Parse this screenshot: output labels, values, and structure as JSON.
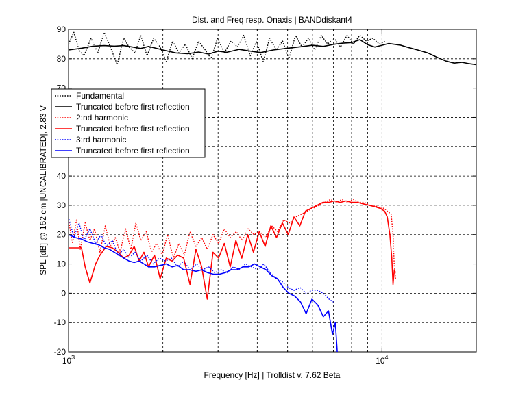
{
  "chart_data": {
    "type": "line",
    "title": "Dist. and Freq resp. Onaxis | BANDdiskant4",
    "xlabel": "Frequency [Hz] | Trolldist v. 7.62 Beta",
    "ylabel": "SPL [dB] @ 162 cm |UNCALIBRATED|, 2.83 V",
    "xscale": "log",
    "xlim": [
      1000,
      20000
    ],
    "ylim": [
      -20,
      90
    ],
    "grid": true,
    "legend_position": "upper-left",
    "x_ticks": [
      {
        "value": 1000,
        "base": "10",
        "exp": "3"
      },
      {
        "value": 10000,
        "base": "10",
        "exp": "4"
      }
    ],
    "y_ticks": [
      -20,
      -10,
      0,
      10,
      20,
      30,
      40,
      50,
      60,
      70,
      80,
      90
    ],
    "series": [
      {
        "name": "Fundamental",
        "color": "#000000",
        "style": "dotted",
        "x": [
          1000,
          1040,
          1080,
          1120,
          1180,
          1240,
          1300,
          1360,
          1430,
          1500,
          1560,
          1630,
          1700,
          1780,
          1870,
          1960,
          2050,
          2150,
          2250,
          2360,
          2480,
          2600,
          2730,
          2850,
          2990,
          3140,
          3300,
          3460,
          3620,
          3800,
          3980,
          4180,
          4380,
          4600,
          4820,
          5050,
          5300,
          5560,
          5830,
          6100,
          6400,
          6710,
          7040,
          7380,
          7740,
          8110,
          8500,
          8920,
          9350,
          9800,
          10300
        ],
        "y": [
          85,
          89,
          83,
          81,
          87,
          82,
          89,
          84,
          78,
          87,
          84,
          82,
          88,
          81,
          87,
          84,
          79,
          86,
          82,
          85,
          80,
          86,
          83,
          80,
          87,
          82,
          86,
          84,
          88,
          81,
          86,
          79,
          87,
          83,
          86,
          80,
          88,
          84,
          87,
          83,
          88,
          85,
          87,
          84,
          88,
          85,
          88,
          86,
          87,
          85,
          86
        ]
      },
      {
        "name": "Truncated before first reflection",
        "color": "#000000",
        "style": "solid",
        "x": [
          1000,
          1100,
          1200,
          1300,
          1400,
          1500,
          1600,
          1700,
          1800,
          1900,
          2000,
          2200,
          2400,
          2600,
          2800,
          3000,
          3200,
          3500,
          3800,
          4100,
          4500,
          5000,
          5500,
          6000,
          6500,
          7000,
          7500,
          8000,
          8500,
          9000,
          9500,
          10000,
          10500,
          11000,
          11500,
          12000,
          13000,
          14000,
          15000,
          16000,
          17000,
          18000,
          19000,
          20000
        ],
        "y": [
          83,
          83.6,
          84.3,
          84.5,
          84.3,
          84.5,
          84,
          83.5,
          84.2,
          83.6,
          83,
          82,
          81.7,
          82.3,
          81.6,
          82.6,
          82.2,
          83.2,
          82.6,
          82.1,
          83,
          83.6,
          84.1,
          84.6,
          84.2,
          84.9,
          85.3,
          85.5,
          86.5,
          84.8,
          84,
          84.6,
          85.2,
          84.9,
          84.6,
          84,
          83,
          82,
          80.5,
          79.2,
          78.5,
          78.8,
          78.3,
          78
        ]
      },
      {
        "name": "2:nd harmonic",
        "color": "#ff0000",
        "style": "dotted",
        "x": [
          1000,
          1030,
          1060,
          1090,
          1130,
          1170,
          1210,
          1260,
          1310,
          1360,
          1410,
          1460,
          1520,
          1580,
          1640,
          1700,
          1770,
          1840,
          1910,
          1990,
          2070,
          2160,
          2250,
          2340,
          2440,
          2550,
          2660,
          2770,
          2890,
          3010,
          3140,
          3280,
          3430,
          3580,
          3740,
          3900,
          4080,
          4260,
          4450,
          4650,
          4860,
          5080,
          5300,
          5540,
          5780,
          6030,
          6300,
          6570,
          6850,
          7150,
          7450,
          7770,
          8100,
          8450,
          8800,
          9150,
          9500,
          9850,
          10150,
          10400,
          10700,
          10850,
          10950,
          11050
        ],
        "y": [
          25,
          17,
          25,
          15,
          24,
          18,
          22,
          14,
          23,
          16,
          19,
          14,
          22,
          15,
          24,
          18,
          21,
          14,
          17,
          13,
          20,
          12,
          17,
          13,
          21,
          16,
          19,
          15,
          20,
          17,
          22,
          19,
          21,
          18,
          22,
          20,
          21,
          19,
          23,
          21,
          25,
          24,
          26,
          27,
          28,
          29,
          30,
          31,
          32,
          31,
          32,
          31,
          32,
          31,
          31,
          30,
          30,
          29,
          29,
          28,
          27,
          20,
          9,
          5
        ]
      },
      {
        "name": "Truncated before first reflection",
        "color": "#ff0000",
        "style": "solid",
        "x": [
          1000,
          1050,
          1100,
          1130,
          1170,
          1220,
          1260,
          1320,
          1380,
          1440,
          1500,
          1560,
          1620,
          1680,
          1740,
          1800,
          1880,
          1960,
          2050,
          2140,
          2230,
          2330,
          2440,
          2550,
          2660,
          2770,
          2890,
          3010,
          3140,
          3280,
          3420,
          3570,
          3730,
          3890,
          4060,
          4240,
          4420,
          4610,
          4810,
          5020,
          5240,
          5470,
          5700,
          5950,
          6210,
          6480,
          6760,
          7050,
          7360,
          7680,
          8010,
          8360,
          8720,
          9100,
          9500,
          9850,
          10200,
          10400,
          10600,
          10750,
          10850,
          10950,
          11050
        ],
        "y": [
          15.5,
          15.5,
          15.5,
          9,
          3.5,
          10,
          13,
          16,
          15.5,
          14,
          12,
          13,
          16,
          11,
          14,
          9,
          13,
          5,
          12,
          11,
          13,
          12,
          3,
          15,
          9,
          -2,
          14,
          12,
          17,
          9,
          18,
          12,
          20,
          14,
          21,
          16,
          23,
          19,
          24,
          20,
          26,
          23,
          28,
          29,
          30,
          31,
          31,
          31.5,
          31,
          31.5,
          31,
          31,
          30.5,
          30,
          29.5,
          29,
          28,
          26,
          20,
          12,
          3,
          8,
          7
        ]
      },
      {
        "name": "3:rd harmonic",
        "color": "#0000ff",
        "style": "dotted",
        "x": [
          1000,
          1040,
          1080,
          1120,
          1170,
          1220,
          1270,
          1320,
          1380,
          1440,
          1500,
          1560,
          1630,
          1700,
          1780,
          1860,
          1950,
          2040,
          2130,
          2230,
          2330,
          2440,
          2560,
          2680,
          2800,
          2930,
          3070,
          3210,
          3360,
          3510,
          3670,
          3840,
          4020,
          4200,
          4400,
          4600,
          4800,
          5020,
          5240,
          5480,
          5720,
          5970,
          6230,
          6500,
          6780,
          7000
        ],
        "y": [
          26,
          19,
          24,
          18,
          22,
          17,
          20,
          16,
          18,
          13,
          15,
          12,
          14,
          11,
          13,
          10,
          12,
          11,
          12,
          9,
          11,
          8,
          10,
          8,
          9,
          7,
          8,
          7,
          9,
          8,
          10,
          9,
          8,
          10,
          7,
          5,
          4,
          2,
          1,
          2,
          0,
          1,
          1,
          0,
          -2,
          -3
        ]
      },
      {
        "name": "Truncated before first reflection",
        "color": "#0000ff",
        "style": "solid",
        "x": [
          1000,
          1050,
          1100,
          1150,
          1200,
          1250,
          1300,
          1350,
          1400,
          1450,
          1500,
          1560,
          1620,
          1680,
          1740,
          1800,
          1880,
          1960,
          2050,
          2140,
          2230,
          2330,
          2440,
          2550,
          2660,
          2780,
          2900,
          3030,
          3160,
          3300,
          3450,
          3600,
          3760,
          3920,
          4090,
          4270,
          4450,
          4640,
          4840,
          5050,
          5270,
          5500,
          5730,
          5980,
          6240,
          6500,
          6750,
          6950,
          7100,
          7200,
          7300
        ],
        "y": [
          20,
          19,
          18.5,
          17.5,
          17,
          16.5,
          15.5,
          15,
          14,
          13,
          12,
          11,
          10.5,
          11,
          10,
          9,
          9,
          9.5,
          10,
          9,
          9.5,
          8,
          8,
          7.5,
          8,
          7,
          6.5,
          6.5,
          7,
          8,
          8,
          9,
          9,
          10,
          9,
          8,
          6,
          5,
          2,
          0,
          -1,
          -3,
          -7,
          -2,
          -4,
          -8,
          -6,
          -14,
          -10,
          -20,
          -22
        ]
      }
    ]
  }
}
